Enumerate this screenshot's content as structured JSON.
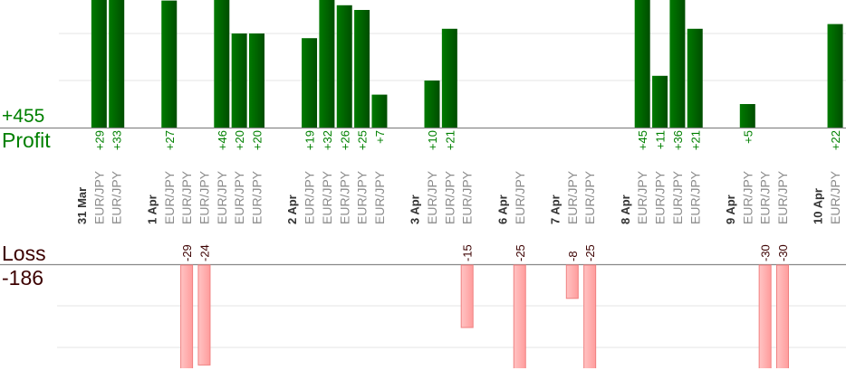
{
  "summary": {
    "profit_total": "+455",
    "profit_label": "Profit",
    "loss_label": "Loss",
    "loss_total": "-186"
  },
  "colors": {
    "profit": "#006400",
    "profit_text": "#008000",
    "loss_fill": "#ffaaaa",
    "loss_border": "#f08080",
    "loss_text": "#3c0000",
    "pair_text": "#8c8c8c",
    "date_text": "#333333"
  },
  "chart_data": {
    "type": "bar",
    "title": "",
    "days": [
      {
        "date": "31 Mar",
        "trades": [
          {
            "pair": "EUR/JPY",
            "value": 29
          },
          {
            "pair": "EUR/JPY",
            "value": 33
          }
        ]
      },
      {
        "date": "1 Apr",
        "trades": [
          {
            "pair": "EUR/JPY",
            "value": 27
          },
          {
            "pair": "EUR/JPY",
            "value": -29
          },
          {
            "pair": "EUR/JPY",
            "value": -24
          },
          {
            "pair": "EUR/JPY",
            "value": 46
          },
          {
            "pair": "EUR/JPY",
            "value": 20
          },
          {
            "pair": "EUR/JPY",
            "value": 20
          }
        ]
      },
      {
        "date": "2 Apr",
        "trades": [
          {
            "pair": "EUR/JPY",
            "value": 19
          },
          {
            "pair": "EUR/JPY",
            "value": 32
          },
          {
            "pair": "EUR/JPY",
            "value": 26
          },
          {
            "pair": "EUR/JPY",
            "value": 25
          },
          {
            "pair": "EUR/JPY",
            "value": 7
          }
        ]
      },
      {
        "date": "3 Apr",
        "trades": [
          {
            "pair": "EUR/JPY",
            "value": 10
          },
          {
            "pair": "EUR/JPY",
            "value": 21
          },
          {
            "pair": "EUR/JPY",
            "value": -15
          }
        ]
      },
      {
        "date": "6 Apr",
        "trades": [
          {
            "pair": "EUR/JPY",
            "value": -25
          }
        ]
      },
      {
        "date": "7 Apr",
        "trades": [
          {
            "pair": "EUR/JPY",
            "value": -8
          },
          {
            "pair": "EUR/JPY",
            "value": -25
          }
        ]
      },
      {
        "date": "8 Apr",
        "trades": [
          {
            "pair": "EUR/JPY",
            "value": 45
          },
          {
            "pair": "EUR/JPY",
            "value": 11
          },
          {
            "pair": "EUR/JPY",
            "value": 36
          },
          {
            "pair": "EUR/JPY",
            "value": 21
          }
        ]
      },
      {
        "date": "9 Apr",
        "trades": [
          {
            "pair": "EUR/JPY",
            "value": 5
          },
          {
            "pair": "EUR/JPY",
            "value": -30
          },
          {
            "pair": "EUR/JPY",
            "value": -30
          }
        ]
      },
      {
        "date": "10 Apr",
        "trades": [
          {
            "pair": "EUR/JPY",
            "value": 22
          }
        ]
      }
    ],
    "grid": true,
    "grid_step": 10
  }
}
